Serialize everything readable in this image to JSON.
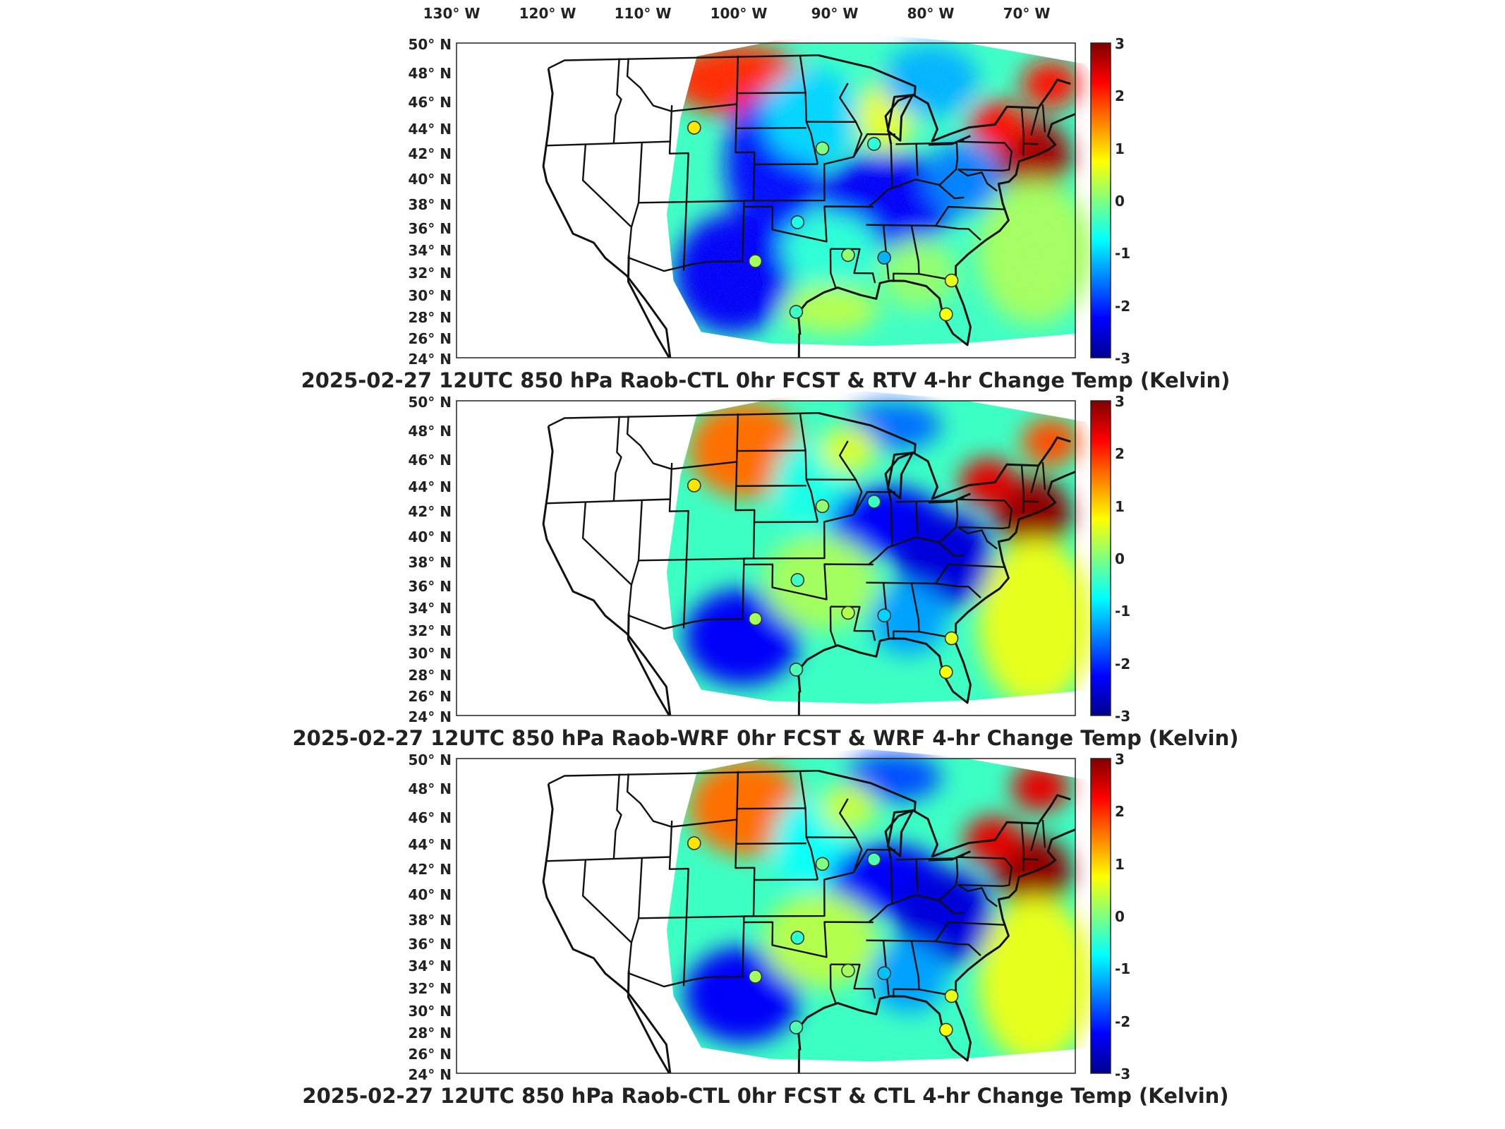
{
  "figure": {
    "date": "2025-02-27",
    "cycle": "12UTC",
    "level": "850 hPa",
    "variable": "Temp",
    "units": "Kelvin",
    "longitude_labels": [
      "130° W",
      "120° W",
      "110° W",
      "100° W",
      "90° W",
      "80° W",
      "70° W"
    ],
    "latitude_labels": [
      "50° N",
      "48° N",
      "46° N",
      "44° N",
      "42° N",
      "40° N",
      "38° N",
      "36° N",
      "34° N",
      "32° N",
      "30° N",
      "28° N",
      "26° N",
      "24° N"
    ],
    "colorbar": {
      "min": -3,
      "max": 3,
      "ticks": [
        "3",
        "2",
        "1",
        "0",
        "-1",
        "-2",
        "-3"
      ]
    },
    "colormap": [
      "#00008f",
      "#0000ff",
      "#0080ff",
      "#00ffff",
      "#80ff80",
      "#ffff00",
      "#ff8000",
      "#ff0000",
      "#800000"
    ]
  },
  "panels": [
    {
      "title": "2025-02-27 12UTC 850 hPa Raob-CTL 0hr FCST & RTV 4-hr Change Temp (Kelvin)"
    },
    {
      "title": "2025-02-27 12UTC 850 hPa Raob-WRF 0hr FCST & WRF 4-hr Change Temp (Kelvin)"
    },
    {
      "title": "2025-02-27 12UTC 850 hPa Raob-CTL 0hr FCST & CTL 4-hr Change Temp (Kelvin)"
    }
  ],
  "raob_stations": [
    {
      "lon": -108.5,
      "lat": 43.1,
      "values": [
        0.9,
        0.9,
        0.9
      ]
    },
    {
      "lon": -97.4,
      "lat": 35.2,
      "values": [
        -0.6,
        -0.4,
        -0.5
      ]
    },
    {
      "lon": -101.7,
      "lat": 32.0,
      "values": [
        0.2,
        0.2,
        0.2
      ]
    },
    {
      "lon": -92.2,
      "lat": 32.5,
      "values": [
        0.1,
        0.3,
        0.2
      ]
    },
    {
      "lon": -89.3,
      "lat": 41.7,
      "values": [
        -0.5,
        -0.4,
        -0.3
      ]
    },
    {
      "lon": -94.8,
      "lat": 41.3,
      "values": [
        0.0,
        0.1,
        0.0
      ]
    },
    {
      "lon": -81.7,
      "lat": 30.5,
      "values": [
        0.6,
        0.6,
        0.6
      ]
    },
    {
      "lon": -82.4,
      "lat": 27.7,
      "values": [
        0.7,
        0.7,
        0.7
      ]
    },
    {
      "lon": -88.5,
      "lat": 32.3,
      "values": [
        -1.2,
        -1.0,
        -1.1
      ]
    },
    {
      "lon": -97.5,
      "lat": 27.8,
      "values": [
        -0.4,
        -0.3,
        -0.3
      ]
    }
  ]
}
